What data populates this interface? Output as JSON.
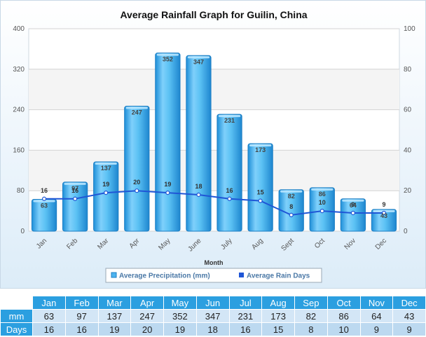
{
  "chart_data": {
    "type": "bar",
    "title": "Average Rainfall Graph for Guilin, China",
    "xlabel": "Month",
    "categories": [
      "Jan",
      "Feb",
      "Mar",
      "Apr",
      "May",
      "June",
      "July",
      "Aug",
      "Sept",
      "Oct",
      "Nov",
      "Dec"
    ],
    "series": [
      {
        "name": "Average Precipitation (mm)",
        "type": "bar",
        "axis": "left",
        "values": [
          63,
          97,
          137,
          247,
          352,
          347,
          231,
          173,
          82,
          86,
          64,
          43
        ]
      },
      {
        "name": "Average Rain Days",
        "type": "line",
        "axis": "right",
        "values": [
          16,
          16,
          19,
          20,
          19,
          18,
          16,
          15,
          8,
          10,
          9,
          9
        ]
      }
    ],
    "ylim_left": [
      0,
      400
    ],
    "yticks_left": [
      0,
      80,
      160,
      240,
      320,
      400
    ],
    "ylim_right": [
      0,
      100
    ],
    "yticks_right": [
      0,
      20,
      40,
      60,
      80,
      100
    ],
    "grid": true,
    "legend_position": "bottom",
    "colors": {
      "bar": "#4db4ef",
      "bar_edge": "#1f7fc4",
      "line": "#1f56d6"
    }
  },
  "table": {
    "months": [
      "Jan",
      "Feb",
      "Mar",
      "Apr",
      "May",
      "Jun",
      "Jul",
      "Aug",
      "Sep",
      "Oct",
      "Nov",
      "Dec"
    ],
    "row_mm_label": "mm",
    "row_days_label": "Days",
    "mm": [
      "63",
      "97",
      "137",
      "247",
      "352",
      "347",
      "231",
      "173",
      "82",
      "86",
      "64",
      "43"
    ],
    "days": [
      "16",
      "16",
      "19",
      "20",
      "19",
      "18",
      "16",
      "15",
      "8",
      "10",
      "9",
      "9"
    ]
  }
}
